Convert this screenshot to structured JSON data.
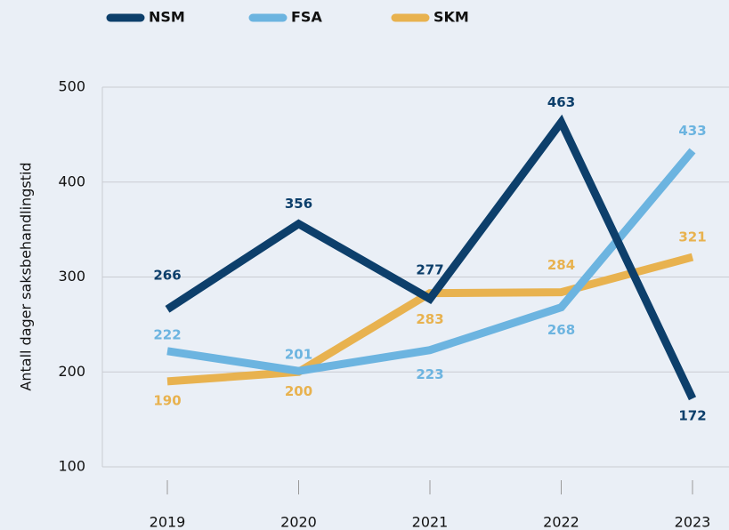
{
  "chart_data": {
    "type": "line",
    "y_label": "Antall dager saksbehandlingstid",
    "categories": [
      "2019",
      "2020",
      "2021",
      "2022",
      "2023"
    ],
    "series": [
      {
        "name": "NSM",
        "color": "#0d3f6b",
        "values": [
          266,
          356,
          277,
          463,
          172
        ]
      },
      {
        "name": "FSA",
        "color": "#6cb4e0",
        "values": [
          222,
          201,
          223,
          268,
          433
        ]
      },
      {
        "name": "SKM",
        "color": "#e8b24f",
        "values": [
          190,
          200,
          283,
          284,
          321
        ]
      }
    ],
    "ylim": [
      100,
      500
    ],
    "yticks": [
      100,
      200,
      300,
      400,
      500
    ],
    "grid": true,
    "legend": "top"
  }
}
